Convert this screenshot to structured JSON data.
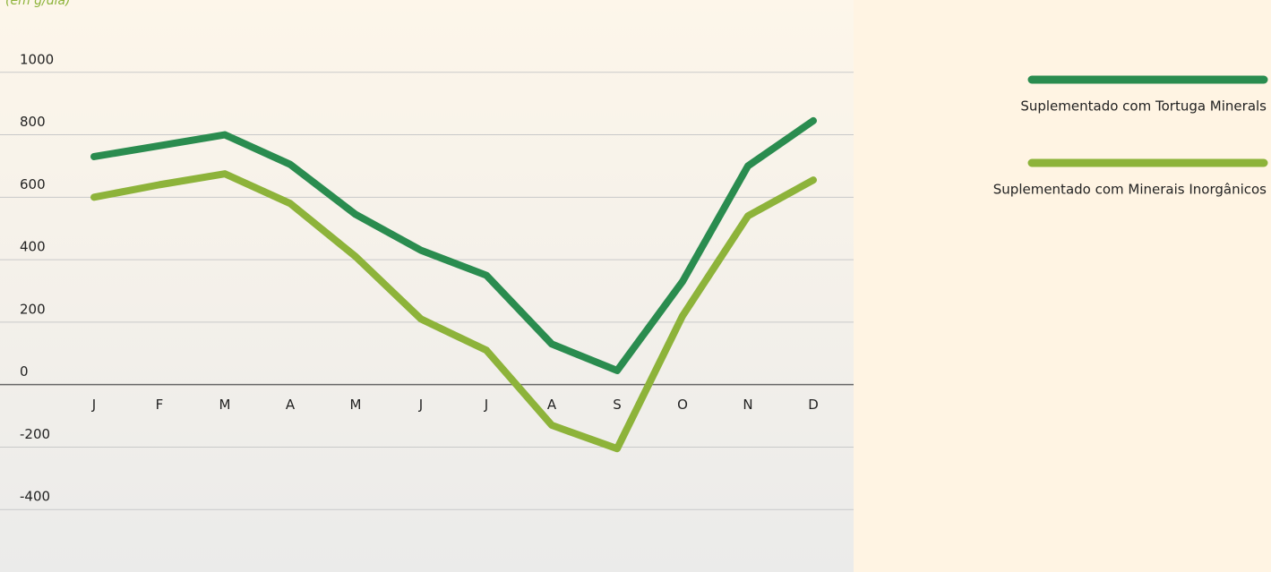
{
  "chart_data": {
    "type": "line",
    "subtitle": "(em g/dia)",
    "categories": [
      "J",
      "F",
      "M",
      "A",
      "M",
      "J",
      "J",
      "A",
      "S",
      "O",
      "N",
      "D"
    ],
    "series": [
      {
        "name": "Suplementado com Tortuga Minerals",
        "color": "#2a8c4f",
        "values": [
          730,
          765,
          800,
          705,
          545,
          430,
          350,
          130,
          45,
          330,
          700,
          845
        ]
      },
      {
        "name": "Suplementado com Minerais Inorgânicos",
        "color": "#8db33a",
        "values": [
          600,
          640,
          675,
          580,
          410,
          210,
          110,
          -130,
          -205,
          220,
          540,
          655
        ]
      }
    ],
    "ylim": [
      -600,
      1200
    ],
    "yticks": [
      -400,
      -200,
      0,
      200,
      400,
      600,
      800,
      1000
    ],
    "grid": true,
    "legend": "right"
  }
}
